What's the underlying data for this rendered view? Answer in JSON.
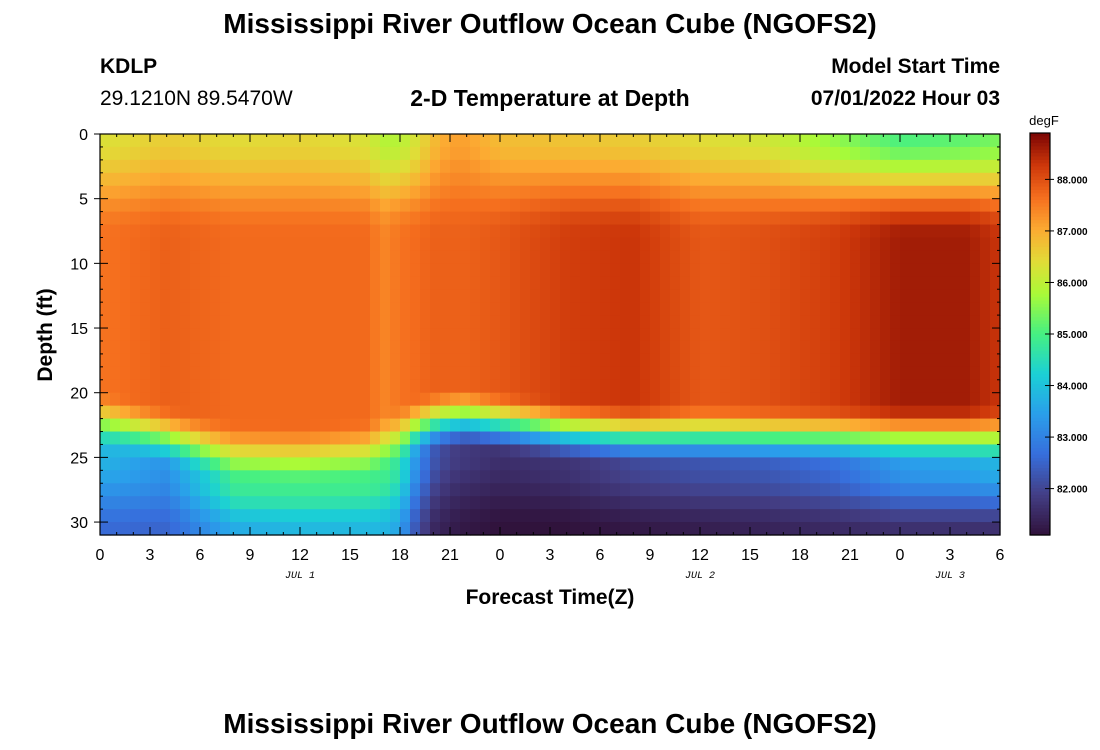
{
  "page_title": "Mississippi River Outflow Ocean Cube (NGOFS2)",
  "station": {
    "id": "KDLP",
    "coords": "29.1210N  89.5470W"
  },
  "model_start": {
    "label": "Model Start Time",
    "value": "07/01/2022 Hour 03"
  },
  "footer_title": "Mississippi River Outflow Ocean Cube (NGOFS2)",
  "chart_data": {
    "type": "heatmap",
    "title": "2-D Temperature at Depth",
    "xlabel": "Forecast Time(Z)",
    "ylabel": "Depth (ft)",
    "x_tick_labels": [
      "0",
      "3",
      "6",
      "9",
      "12",
      "15",
      "18",
      "21",
      "0",
      "3",
      "6",
      "9",
      "12",
      "15",
      "18",
      "21",
      "0",
      "3",
      "6"
    ],
    "x_tick_hours": [
      0,
      3,
      6,
      9,
      12,
      15,
      18,
      21,
      24,
      27,
      30,
      33,
      36,
      39,
      42,
      45,
      48,
      51,
      54
    ],
    "xlim": [
      0,
      54
    ],
    "date_labels": [
      {
        "label": "JUL 1",
        "hour": 12
      },
      {
        "label": "JUL 2",
        "hour": 36
      },
      {
        "label": "JUL 3",
        "hour": 51
      }
    ],
    "y_ticks": [
      0,
      5,
      10,
      15,
      20,
      25,
      30
    ],
    "ylim": [
      0,
      31
    ],
    "colorbar": {
      "unit": "degF",
      "min": 81.1,
      "max": 88.9,
      "ticks": [
        82.0,
        83.0,
        84.0,
        85.0,
        86.0,
        87.0,
        88.0
      ],
      "tick_labels": [
        "82.000",
        "83.000",
        "84.000",
        "85.000",
        "86.000",
        "87.000",
        "88.000"
      ]
    },
    "grid": false,
    "profile_hours": [
      0,
      4,
      8,
      12,
      16,
      17,
      18,
      19,
      20,
      21,
      22,
      24,
      28,
      32,
      36,
      40,
      44,
      48,
      52,
      54
    ],
    "interface_depth": [
      20.8,
      22.0,
      23.2,
      23.4,
      23.0,
      22.4,
      21.8,
      21.2,
      20.8,
      20.6,
      20.5,
      20.9,
      21.5,
      21.8,
      21.8,
      21.9,
      21.9,
      21.9,
      21.9,
      21.9
    ],
    "surface_temp": [
      86.3,
      86.6,
      86.4,
      86.5,
      86.3,
      85.9,
      85.9,
      86.3,
      86.8,
      87.1,
      87.1,
      86.8,
      86.7,
      86.6,
      86.4,
      86.2,
      85.6,
      85.0,
      85.2,
      85.4
    ],
    "core_temp": [
      87.6,
      87.8,
      87.7,
      87.7,
      87.7,
      87.4,
      87.6,
      87.7,
      87.8,
      87.8,
      87.8,
      87.9,
      88.2,
      88.3,
      87.9,
      88.0,
      88.2,
      88.6,
      88.6,
      88.3
    ],
    "deep_temp": [
      83.8,
      83.2,
      84.8,
      84.9,
      84.9,
      84.9,
      84.6,
      83.2,
      82.3,
      81.9,
      81.8,
      81.6,
      81.7,
      82.0,
      82.2,
      82.3,
      82.6,
      83.3,
      83.5,
      83.7
    ],
    "bottom_temp": [
      82.6,
      82.5,
      83.6,
      83.8,
      83.8,
      83.8,
      83.5,
      82.2,
      81.5,
      81.3,
      81.2,
      81.1,
      81.1,
      81.2,
      81.3,
      81.4,
      81.5,
      81.6,
      81.6,
      81.6
    ]
  }
}
